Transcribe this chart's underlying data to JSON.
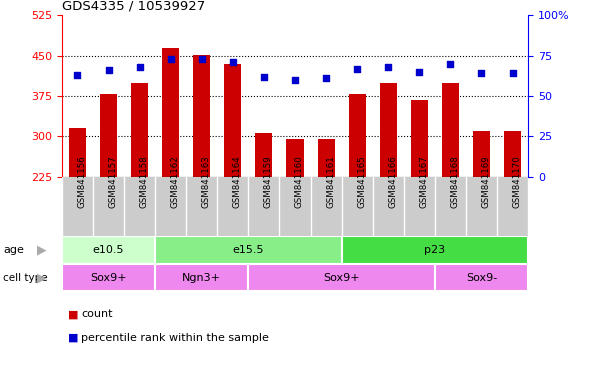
{
  "title": "GDS4335 / 10539927",
  "samples": [
    "GSM841156",
    "GSM841157",
    "GSM841158",
    "GSM841162",
    "GSM841163",
    "GSM841164",
    "GSM841159",
    "GSM841160",
    "GSM841161",
    "GSM841165",
    "GSM841166",
    "GSM841167",
    "GSM841168",
    "GSM841169",
    "GSM841170"
  ],
  "counts": [
    315,
    378,
    400,
    465,
    452,
    435,
    307,
    295,
    295,
    378,
    400,
    368,
    400,
    310,
    310
  ],
  "percentiles": [
    63,
    66,
    68,
    73,
    73,
    71,
    62,
    60,
    61,
    67,
    68,
    65,
    70,
    64,
    64
  ],
  "ylim_left": [
    225,
    525
  ],
  "ylim_right": [
    0,
    100
  ],
  "yticks_left": [
    225,
    300,
    375,
    450,
    525
  ],
  "yticks_right": [
    0,
    25,
    50,
    75,
    100
  ],
  "bar_color": "#cc0000",
  "dot_color": "#0000cc",
  "plot_bg": "#ffffff",
  "tick_bg": "#cccccc",
  "age_groups": [
    {
      "label": "e10.5",
      "start": 0,
      "end": 3,
      "color": "#ccffcc"
    },
    {
      "label": "e15.5",
      "start": 3,
      "end": 9,
      "color": "#88ee88"
    },
    {
      "label": "p23",
      "start": 9,
      "end": 15,
      "color": "#44dd44"
    }
  ],
  "cell_groups": [
    {
      "label": "Sox9+",
      "start": 0,
      "end": 3
    },
    {
      "label": "Ngn3+",
      "start": 3,
      "end": 6
    },
    {
      "label": "Sox9+",
      "start": 6,
      "end": 12
    },
    {
      "label": "Sox9-",
      "start": 12,
      "end": 15
    }
  ],
  "cell_color": "#ee88ee",
  "legend_count_color": "#cc0000",
  "legend_dot_color": "#0000cc",
  "grid_ticks": [
    300,
    375,
    450
  ]
}
